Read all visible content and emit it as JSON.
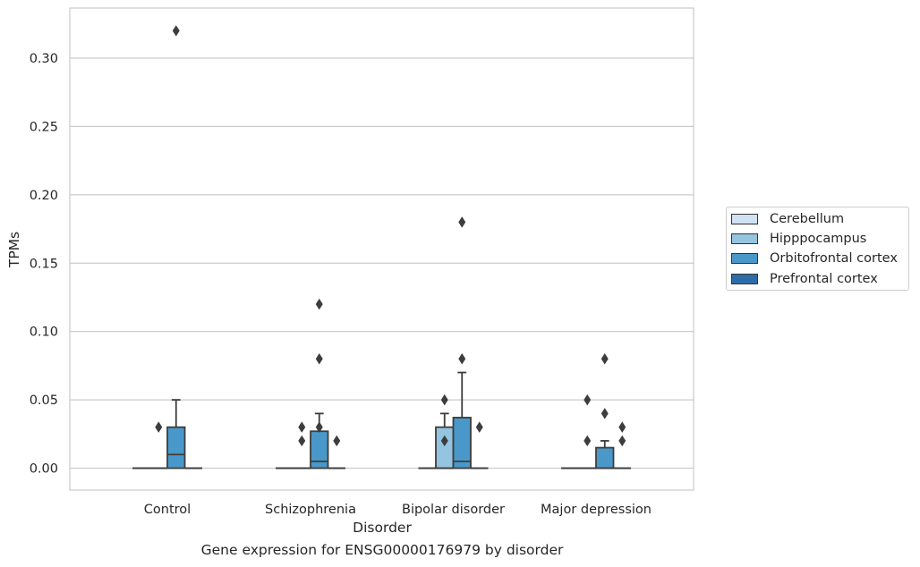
{
  "chart_data": {
    "type": "box",
    "caption": "Gene expression for ENSG00000176979 by disorder",
    "xlabel": "Disorder",
    "ylabel": "TPMs",
    "ylim": [
      -0.016,
      0.337
    ],
    "yticks": [
      "0.00",
      "0.05",
      "0.10",
      "0.15",
      "0.20",
      "0.25",
      "0.30"
    ],
    "ytick_values": [
      0,
      0.05,
      0.1,
      0.15,
      0.2,
      0.25,
      0.3
    ],
    "categories": [
      "Control",
      "Schizophrenia",
      "Bipolar disorder",
      "Major depression"
    ],
    "grid": "horizontal",
    "legend_position": "right",
    "series": [
      {
        "name": "Cerebellum",
        "color": "#d0e1f2",
        "boxes": [
          {
            "q1": 0,
            "median": 0,
            "q3": 0,
            "whislo": 0,
            "whishi": 0,
            "fliers": []
          },
          {
            "q1": 0,
            "median": 0,
            "q3": 0,
            "whislo": 0,
            "whishi": 0,
            "fliers": []
          },
          {
            "q1": 0,
            "median": 0,
            "q3": 0,
            "whislo": 0,
            "whishi": 0,
            "fliers": []
          },
          {
            "q1": 0,
            "median": 0,
            "q3": 0,
            "whislo": 0,
            "whishi": 0,
            "fliers": []
          }
        ]
      },
      {
        "name": "Hipppocampus",
        "color": "#94c4df",
        "boxes": [
          {
            "q1": 0,
            "median": 0,
            "q3": 0,
            "whislo": 0,
            "whishi": 0,
            "fliers": [
              0.03
            ]
          },
          {
            "q1": 0,
            "median": 0,
            "q3": 0,
            "whislo": 0,
            "whishi": 0,
            "fliers": [
              0.02,
              0.03
            ]
          },
          {
            "q1": 0,
            "median": 0,
            "q3": 0.03,
            "whislo": 0,
            "whishi": 0.04,
            "fliers": [
              0.02,
              0.05
            ]
          },
          {
            "q1": 0,
            "median": 0,
            "q3": 0,
            "whislo": 0,
            "whishi": 0,
            "fliers": [
              0.02,
              0.05
            ]
          }
        ]
      },
      {
        "name": "Orbitofrontal cortex",
        "color": "#4a98c9",
        "boxes": [
          {
            "q1": 0,
            "median": 0.01,
            "q3": 0.03,
            "whislo": 0,
            "whishi": 0.05,
            "fliers": [
              0.32
            ]
          },
          {
            "q1": 0,
            "median": 0.005,
            "q3": 0.027,
            "whislo": 0,
            "whishi": 0.04,
            "fliers": [
              0.03,
              0.08,
              0.12
            ]
          },
          {
            "q1": 0,
            "median": 0.005,
            "q3": 0.037,
            "whislo": 0,
            "whishi": 0.07,
            "fliers": [
              0.08,
              0.18
            ]
          },
          {
            "q1": 0,
            "median": 0,
            "q3": 0.015,
            "whislo": 0,
            "whishi": 0.02,
            "fliers": [
              0.04,
              0.08
            ]
          }
        ]
      },
      {
        "name": "Prefrontal cortex",
        "color": "#2e6ca8",
        "boxes": [
          {
            "q1": 0,
            "median": 0,
            "q3": 0,
            "whislo": 0,
            "whishi": 0,
            "fliers": []
          },
          {
            "q1": 0,
            "median": 0,
            "q3": 0,
            "whislo": 0,
            "whishi": 0,
            "fliers": [
              0.02
            ]
          },
          {
            "q1": 0,
            "median": 0,
            "q3": 0,
            "whislo": 0,
            "whishi": 0,
            "fliers": [
              0.03
            ]
          },
          {
            "q1": 0,
            "median": 0,
            "q3": 0,
            "whislo": 0,
            "whishi": 0,
            "fliers": [
              0.02,
              0.03
            ]
          }
        ]
      }
    ]
  }
}
